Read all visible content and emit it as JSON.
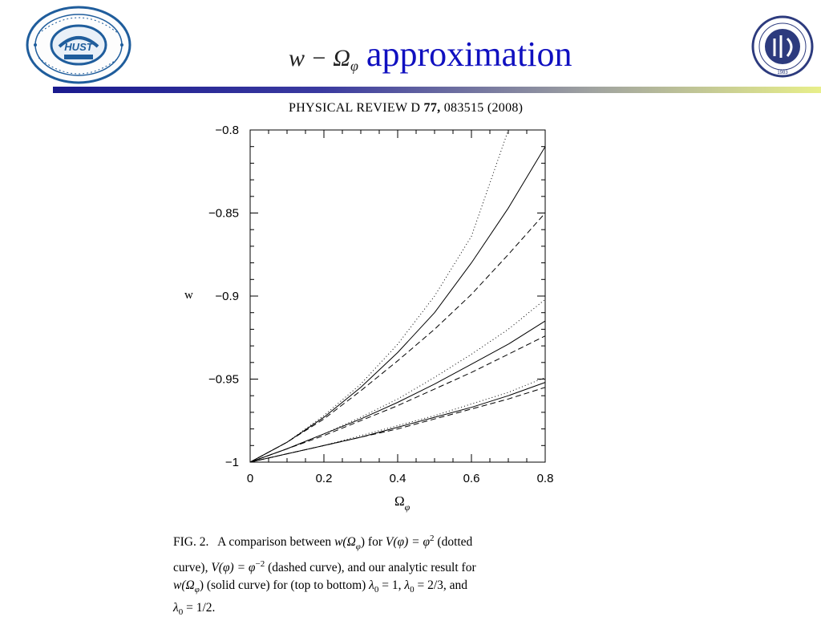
{
  "slide": {
    "title_math_base": "w − Ω",
    "title_math_sub": "φ",
    "title_word": "approximation",
    "citation_journal": "PHYSICAL REVIEW D",
    "citation_volume": "77,",
    "citation_rest": "083515 (2008)",
    "logo_left_badge": "HUST",
    "logo_right_year": "1983"
  },
  "caption": {
    "fig": "FIG. 2.",
    "line1_a": "A comparison between",
    "line1_b": "w(Ω",
    "line1_c": ") for",
    "line1_d": "V(φ) = φ",
    "line1_e": "2",
    "line1_f": "(dotted",
    "line2_a": "curve),",
    "line2_b": "V(φ) = φ",
    "line2_c": "−2",
    "line2_d": "(dashed curve), and our analytic result for",
    "line3_a": "w(Ω",
    "line3_b": ") (solid curve) for (top to bottom)",
    "line3_c": "λ",
    "line3_d": "= 1,",
    "line3_e": "λ",
    "line3_f": "= 2/3, and",
    "line4_a": "λ",
    "line4_b": "= 1/2.",
    "sub_phi": "φ",
    "sub_zero": "0"
  },
  "chart_data": {
    "type": "line",
    "xlabel": "Ω",
    "xlabel_sub": "φ",
    "ylabel": "w",
    "xlim": [
      0,
      0.8
    ],
    "ylim": [
      -1,
      -0.8
    ],
    "xticks": [
      0,
      0.2,
      0.4,
      0.6,
      0.8
    ],
    "xtick_labels": [
      "0",
      "0.2",
      "0.4",
      "0.6",
      "0.8"
    ],
    "yticks": [
      -1,
      -0.95,
      -0.9,
      -0.85,
      -0.8
    ],
    "ytick_labels": [
      "−1",
      "−0.95",
      "−0.9",
      "−0.85",
      "−0.8"
    ],
    "x": [
      0,
      0.1,
      0.2,
      0.3,
      0.4,
      0.5,
      0.6,
      0.7,
      0.8
    ],
    "series": [
      {
        "style": "dotted",
        "group": "λ0 = 1",
        "x": [
          0,
          0.1,
          0.2,
          0.3,
          0.4,
          0.5,
          0.6,
          0.7
        ],
        "values": [
          -1,
          -0.988,
          -0.972,
          -0.953,
          -0.929,
          -0.9,
          -0.864,
          -0.8
        ]
      },
      {
        "style": "solid",
        "group": "λ0 = 1",
        "x": [
          0,
          0.1,
          0.2,
          0.3,
          0.4,
          0.5,
          0.6,
          0.7,
          0.8
        ],
        "values": [
          -1,
          -0.988,
          -0.973,
          -0.955,
          -0.934,
          -0.91,
          -0.88,
          -0.847,
          -0.81
        ]
      },
      {
        "style": "dashed",
        "group": "λ0 = 1",
        "x": [
          0,
          0.1,
          0.2,
          0.3,
          0.4,
          0.5,
          0.6,
          0.7,
          0.8
        ],
        "values": [
          -1,
          -0.988,
          -0.974,
          -0.957,
          -0.939,
          -0.92,
          -0.899,
          -0.875,
          -0.85
        ]
      },
      {
        "style": "dotted",
        "group": "λ0 = 2/3",
        "x": [
          0,
          0.1,
          0.2,
          0.3,
          0.4,
          0.5,
          0.6,
          0.7,
          0.8
        ],
        "values": [
          -1,
          -0.992,
          -0.983,
          -0.973,
          -0.962,
          -0.949,
          -0.935,
          -0.92,
          -0.902
        ]
      },
      {
        "style": "solid",
        "group": "λ0 = 2/3",
        "x": [
          0,
          0.1,
          0.2,
          0.3,
          0.4,
          0.5,
          0.6,
          0.7,
          0.8
        ],
        "values": [
          -1,
          -0.992,
          -0.983,
          -0.974,
          -0.964,
          -0.953,
          -0.941,
          -0.929,
          -0.915
        ]
      },
      {
        "style": "dashed",
        "group": "λ0 = 2/3",
        "x": [
          0,
          0.1,
          0.2,
          0.3,
          0.4,
          0.5,
          0.6,
          0.7,
          0.8
        ],
        "values": [
          -1,
          -0.992,
          -0.984,
          -0.975,
          -0.966,
          -0.956,
          -0.946,
          -0.935,
          -0.924
        ]
      },
      {
        "style": "dotted",
        "group": "λ0 = 1/2",
        "x": [
          0,
          0.1,
          0.2,
          0.3,
          0.4,
          0.5,
          0.6,
          0.7,
          0.8
        ],
        "values": [
          -1,
          -0.995,
          -0.99,
          -0.984,
          -0.978,
          -0.972,
          -0.965,
          -0.958,
          -0.949
        ]
      },
      {
        "style": "solid",
        "group": "λ0 = 1/2",
        "x": [
          0,
          0.1,
          0.2,
          0.3,
          0.4,
          0.5,
          0.6,
          0.7,
          0.8
        ],
        "values": [
          -1,
          -0.995,
          -0.99,
          -0.985,
          -0.979,
          -0.973,
          -0.967,
          -0.96,
          -0.952
        ]
      },
      {
        "style": "dashed",
        "group": "λ0 = 1/2",
        "x": [
          0,
          0.1,
          0.2,
          0.3,
          0.4,
          0.5,
          0.6,
          0.7,
          0.8
        ],
        "values": [
          -1,
          -0.995,
          -0.99,
          -0.985,
          -0.98,
          -0.974,
          -0.968,
          -0.962,
          -0.955
        ]
      }
    ]
  }
}
